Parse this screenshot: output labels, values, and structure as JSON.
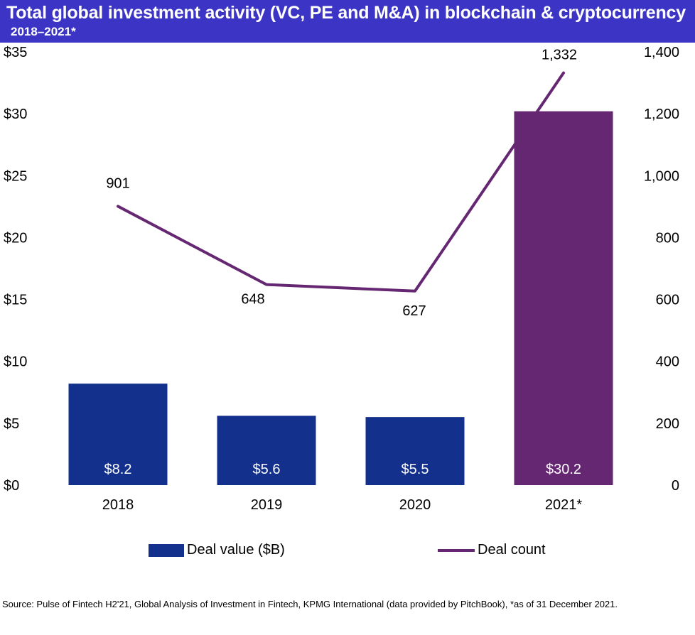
{
  "header": {
    "title": "Total global investment activity (VC, PE and M&A) in blockchain & cryptocurrency",
    "subtitle": "2018–2021*"
  },
  "chart_data": {
    "type": "bar",
    "categories": [
      "2018",
      "2019",
      "2020",
      "2021*"
    ],
    "series": [
      {
        "name": "Deal value ($B)",
        "type": "bar",
        "axis": "left",
        "values": [
          8.2,
          5.6,
          5.5,
          30.2
        ],
        "labels": [
          "$8.2",
          "$5.6",
          "$5.5",
          "$30.2"
        ],
        "colors": [
          "#13318c",
          "#13318c",
          "#13318c",
          "#662772"
        ]
      },
      {
        "name": "Deal count",
        "type": "line",
        "axis": "right",
        "values": [
          901,
          648,
          627,
          1332
        ],
        "labels": [
          "901",
          "648",
          "627",
          "1,332"
        ],
        "color": "#662772"
      }
    ],
    "y_left": {
      "range": [
        0,
        35
      ],
      "ticks": [
        "$0",
        "$5",
        "$10",
        "$15",
        "$20",
        "$25",
        "$30",
        "$35"
      ]
    },
    "y_right": {
      "range": [
        0,
        1400
      ],
      "ticks": [
        "0",
        "200",
        "400",
        "600",
        "800",
        "1,000",
        "1,200",
        "1,400"
      ]
    },
    "grid": false,
    "legend_position": "bottom"
  },
  "legend": {
    "bar_label": "Deal value ($B)",
    "line_label": "Deal count",
    "bar_color": "#13318c",
    "line_color": "#662772"
  },
  "source": "Source: Pulse of Fintech H2'21, Global Analysis of Investment in Fintech, KPMG International (data provided by PitchBook), *as of 31 December 2021."
}
